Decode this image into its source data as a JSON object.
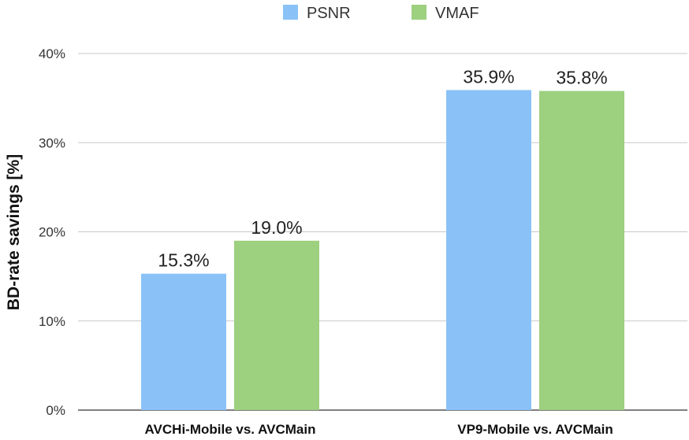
{
  "chart_data": {
    "type": "bar",
    "categories": [
      "AVCHi-Mobile vs. AVCMain",
      "VP9-Mobile vs. AVCMain"
    ],
    "series": [
      {
        "name": "PSNR",
        "color": "#8ac2f7",
        "values": [
          15.3,
          35.9
        ],
        "labels": [
          "15.3%",
          "35.9%"
        ]
      },
      {
        "name": "VMAF",
        "color": "#9dd07f",
        "values": [
          19.0,
          35.8
        ],
        "labels": [
          "19.0%",
          "35.8%"
        ]
      }
    ],
    "title": "",
    "xlabel": "",
    "ylabel": "BD-rate savings [%]",
    "ylim": [
      0,
      40
    ],
    "yticks": [
      0,
      10,
      20,
      30,
      40
    ],
    "ytick_labels": [
      "0%",
      "10%",
      "20%",
      "30%",
      "40%"
    ],
    "grid": true,
    "legend": "top-center"
  }
}
